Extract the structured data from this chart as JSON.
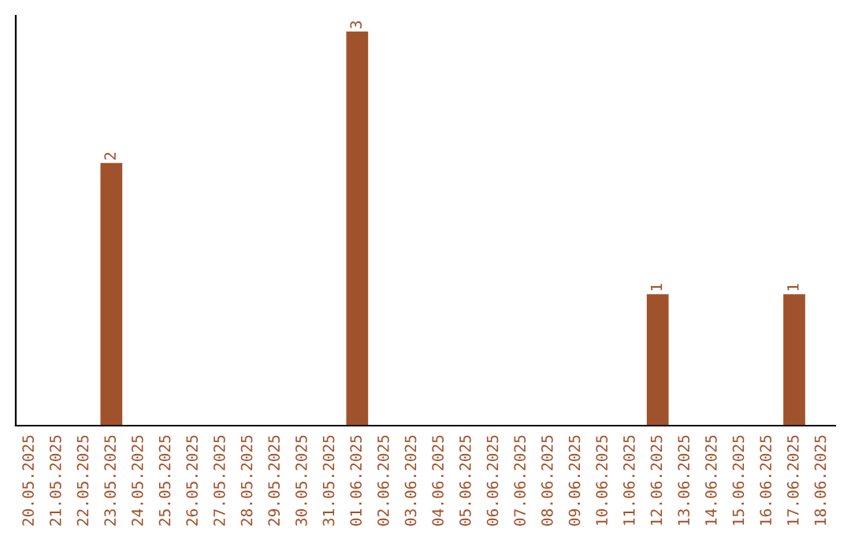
{
  "chart_data": {
    "type": "bar",
    "categories": [
      "20.05.2025",
      "21.05.2025",
      "22.05.2025",
      "23.05.2025",
      "24.05.2025",
      "25.05.2025",
      "26.05.2025",
      "27.05.2025",
      "28.05.2025",
      "29.05.2025",
      "30.05.2025",
      "31.05.2025",
      "01.06.2025",
      "02.06.2025",
      "03.06.2025",
      "04.06.2025",
      "05.06.2025",
      "06.06.2025",
      "07.06.2025",
      "08.06.2025",
      "09.06.2025",
      "10.06.2025",
      "11.06.2025",
      "12.06.2025",
      "13.06.2025",
      "14.06.2025",
      "15.06.2025",
      "16.06.2025",
      "17.06.2025",
      "18.06.2025"
    ],
    "values": [
      0,
      0,
      0,
      2,
      0,
      0,
      0,
      0,
      0,
      0,
      0,
      0,
      3,
      0,
      0,
      0,
      0,
      0,
      0,
      0,
      0,
      0,
      0,
      1,
      0,
      0,
      0,
      0,
      1,
      0
    ],
    "value_labels": [
      null,
      null,
      null,
      "2",
      null,
      null,
      null,
      null,
      null,
      null,
      null,
      null,
      "3",
      null,
      null,
      null,
      null,
      null,
      null,
      null,
      null,
      null,
      null,
      "1",
      null,
      null,
      null,
      null,
      "1",
      null
    ],
    "color": "#a0522d",
    "tick_labels": "x",
    "grid": false,
    "legend": false
  }
}
